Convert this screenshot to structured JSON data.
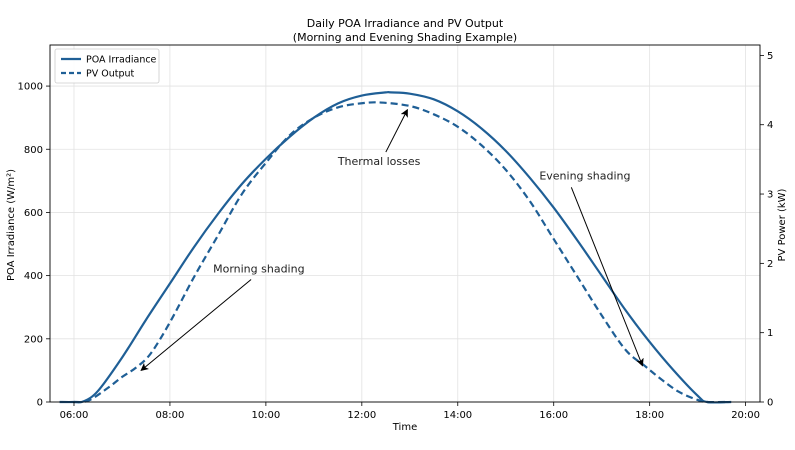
{
  "chart_data": {
    "type": "line",
    "title": "Daily POA Irradiance and PV Output",
    "subtitle": "(Morning and Evening Shading Example)",
    "xlabel": "Time",
    "ylabel": "POA Irradiance (W/m²)",
    "y2label": "PV Power (kW)",
    "xlim": [
      5.5,
      20.3
    ],
    "ylim": [
      0,
      1130
    ],
    "y2lim": [
      0,
      5.15
    ],
    "x_ticks": [
      6,
      8,
      10,
      12,
      14,
      16,
      18,
      20
    ],
    "x_tick_labels": [
      "06:00",
      "08:00",
      "10:00",
      "12:00",
      "14:00",
      "16:00",
      "18:00",
      "20:00"
    ],
    "y_ticks": [
      0,
      200,
      400,
      600,
      800,
      1000
    ],
    "y_tick_labels": [
      "0",
      "200",
      "400",
      "600",
      "800",
      "1000"
    ],
    "y2_ticks": [
      0,
      1,
      2,
      3,
      4,
      5
    ],
    "y2_tick_labels": [
      "0",
      "1",
      "2",
      "3",
      "4",
      "5"
    ],
    "grid": true,
    "legend_position": "top-left",
    "series": [
      {
        "name": "POA Irradiance",
        "axis": "left",
        "style": "solid",
        "color": "#1f5f96",
        "x": [
          5.7,
          6.0,
          6.2,
          6.5,
          7.0,
          7.5,
          8.0,
          8.5,
          9.0,
          9.5,
          10.0,
          10.5,
          11.0,
          11.5,
          12.0,
          12.5,
          12.6,
          13.0,
          13.5,
          14.0,
          14.5,
          15.0,
          15.5,
          16.0,
          16.5,
          17.0,
          17.5,
          18.0,
          18.5,
          19.0,
          19.2,
          19.7
        ],
        "y": [
          0,
          0,
          2,
          35,
          140,
          260,
          375,
          490,
          595,
          690,
          770,
          840,
          900,
          945,
          970,
          980,
          980,
          976,
          958,
          920,
          865,
          795,
          710,
          615,
          510,
          400,
          290,
          190,
          100,
          20,
          0,
          0
        ]
      },
      {
        "name": "PV Output",
        "axis": "right",
        "style": "dashed",
        "color": "#1f5f96",
        "x": [
          6.0,
          6.3,
          6.7,
          7.0,
          7.3,
          7.6,
          8.0,
          8.5,
          9.0,
          9.5,
          10.0,
          10.5,
          11.0,
          11.5,
          12.0,
          12.4,
          13.0,
          13.5,
          14.0,
          14.5,
          15.0,
          15.5,
          16.0,
          16.5,
          17.0,
          17.5,
          17.9,
          18.2,
          18.6,
          19.0,
          19.2,
          19.6
        ],
        "y": [
          0,
          0.02,
          0.2,
          0.36,
          0.5,
          0.7,
          1.15,
          1.8,
          2.4,
          3.0,
          3.45,
          3.85,
          4.1,
          4.25,
          4.31,
          4.32,
          4.27,
          4.15,
          3.97,
          3.7,
          3.35,
          2.9,
          2.35,
          1.8,
          1.25,
          0.75,
          0.52,
          0.35,
          0.15,
          0.03,
          0.0,
          0.0
        ]
      }
    ],
    "annotations": [
      {
        "text": "Morning shading",
        "text_at": [
          8.9,
          410
        ],
        "arrow_to": [
          7.4,
          100
        ]
      },
      {
        "text": "Thermal losses",
        "text_at": [
          11.5,
          750
        ],
        "arrow_to": [
          12.95,
          925
        ]
      },
      {
        "text": "Evening shading",
        "text_at": [
          15.7,
          705
        ],
        "arrow_to": [
          17.85,
          115
        ]
      }
    ]
  }
}
